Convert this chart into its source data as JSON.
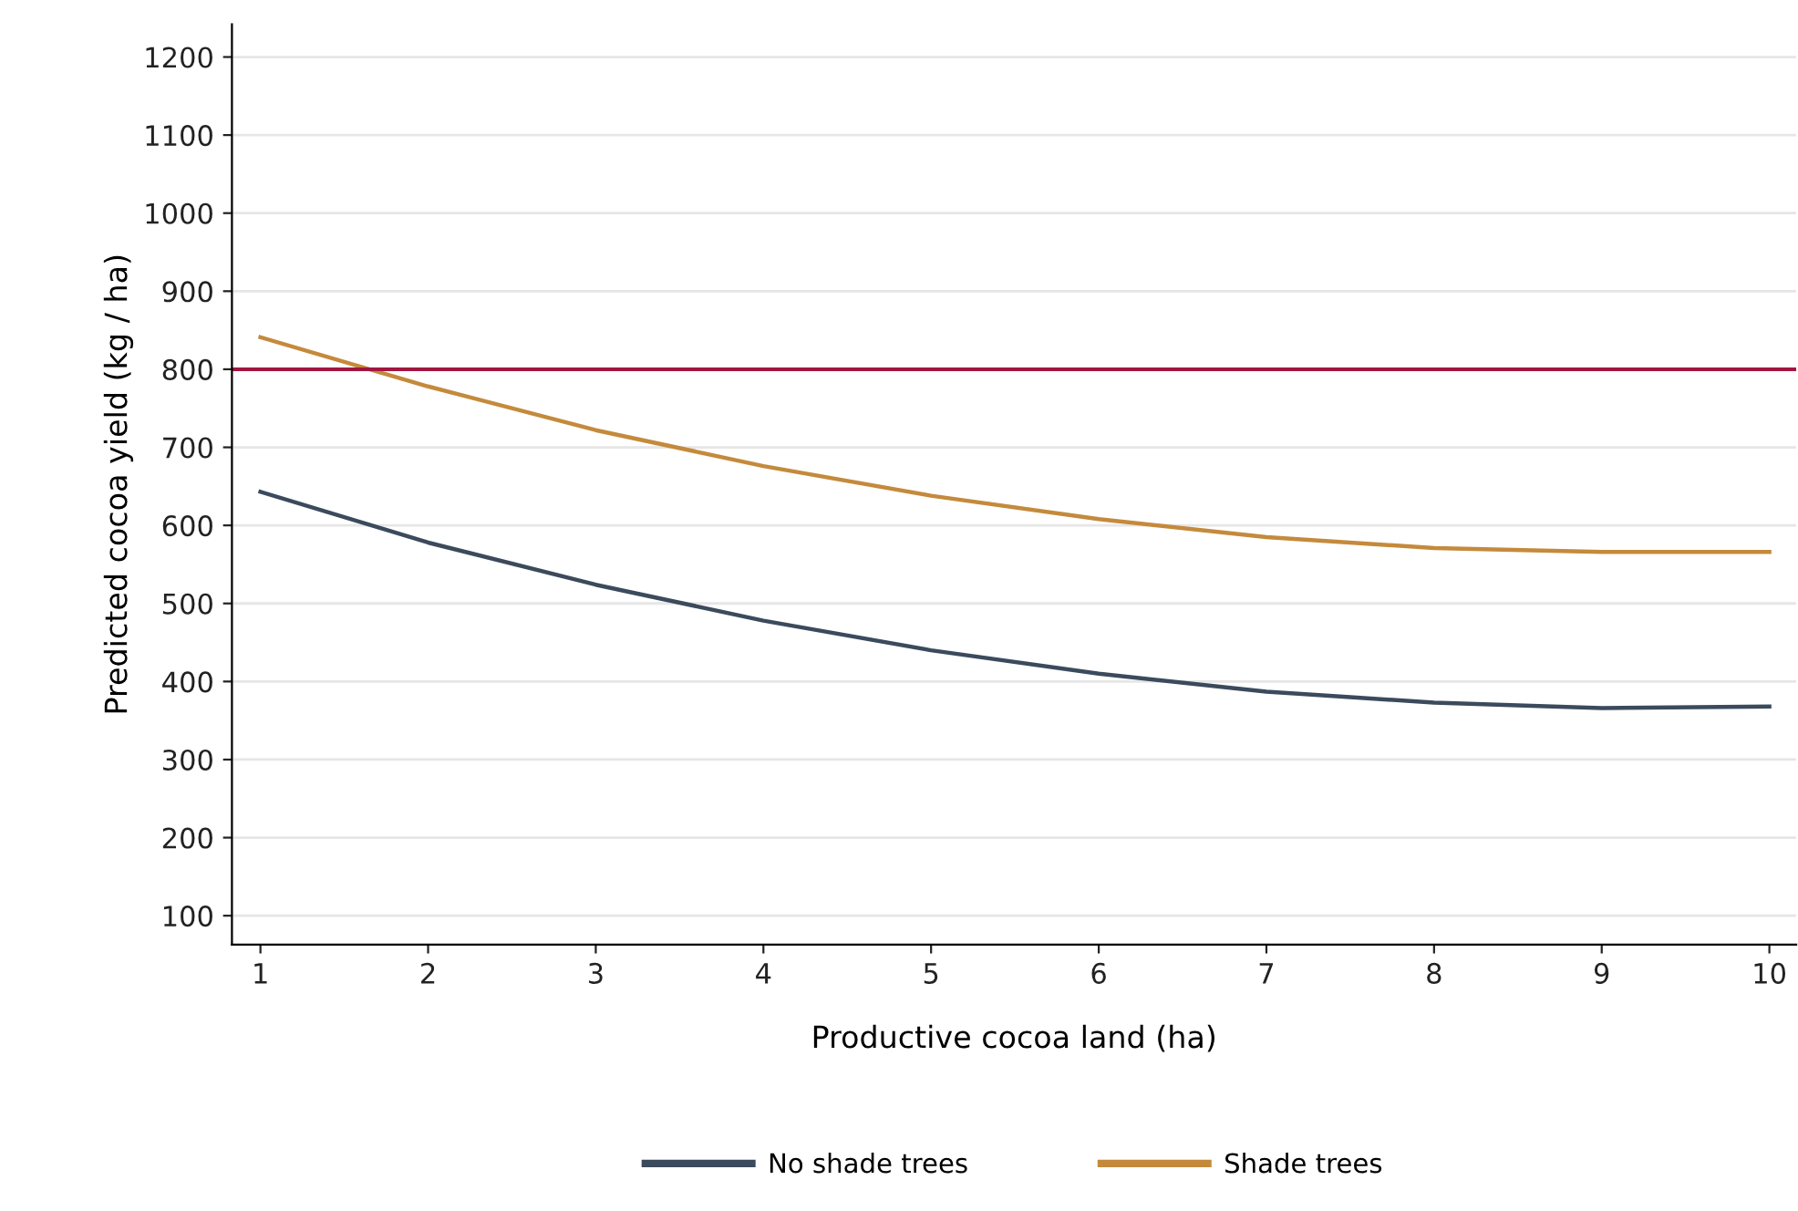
{
  "chart_data": {
    "type": "line",
    "xlabel": "Productive cocoa land (ha)",
    "ylabel": "Predicted cocoa yield (kg / ha)",
    "x": [
      1,
      2,
      3,
      4,
      5,
      6,
      7,
      8,
      9,
      10
    ],
    "series": [
      {
        "name": "No shade trees",
        "color": "#3b4a5c",
        "values": [
          643,
          578,
          524,
          478,
          440,
          410,
          387,
          373,
          366,
          368
        ]
      },
      {
        "name": "Shade trees",
        "color": "#c48a3c",
        "values": [
          841,
          778,
          722,
          676,
          638,
          608,
          585,
          571,
          566,
          566
        ]
      }
    ],
    "xlim": [
      0.83,
      10.16
    ],
    "xticks": [
      1,
      2,
      3,
      4,
      5,
      6,
      7,
      8,
      9,
      10
    ],
    "ylim": [
      63,
      1242
    ],
    "yticks": [
      100,
      200,
      300,
      400,
      500,
      600,
      700,
      800,
      900,
      1000,
      1100,
      1200
    ],
    "ref_lines": [
      {
        "axis": "y",
        "value": 800,
        "color": "#a0163f"
      }
    ],
    "grid": "y",
    "legend": "bottom",
    "marker": "none",
    "line_style": "solid"
  }
}
